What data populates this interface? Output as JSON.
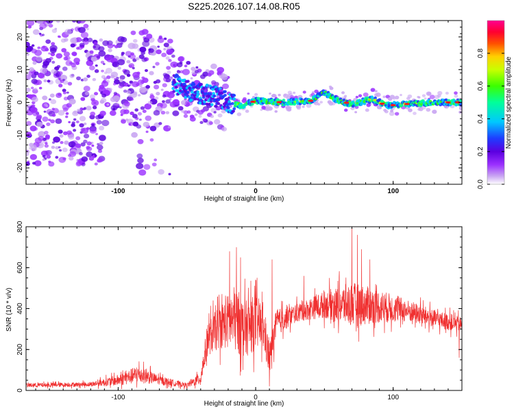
{
  "page_title": "S225.2026.107.14.08.R05",
  "chart_data": [
    {
      "type": "heatmap",
      "title": "S225.2026.107.14.08.R05",
      "xlabel": "Height of straight line (km)",
      "ylabel": "Frequency (Hz)",
      "xlim": [
        -167,
        150
      ],
      "ylim": [
        -25,
        25
      ],
      "xticks": [
        -100,
        0,
        100
      ],
      "xtick_labels": [
        "-100",
        "0",
        "100"
      ],
      "yticks": [
        -20,
        -10,
        0,
        10,
        20
      ],
      "ytick_labels": [
        "-20",
        "-10",
        "0",
        "10",
        "20"
      ],
      "colorbar": {
        "label": "Normalized spectral amplitude",
        "range": [
          0,
          1
        ],
        "ticks": [
          0.0,
          0.2,
          0.4,
          0.6,
          0.8
        ],
        "tick_labels": [
          "0.0",
          "0.2",
          "0.4",
          "0.6",
          "0.8"
        ],
        "colors": [
          "#ffffff",
          "#c9a6f2",
          "#9b30ff",
          "#5b00e0",
          "#1e3cff",
          "#00c8ff",
          "#00ff9a",
          "#3cff00",
          "#c8ff00",
          "#ffd000",
          "#ff5000",
          "#ff0030",
          "#ff0090"
        ]
      },
      "ridge": [
        {
          "x": -60,
          "y": 6
        },
        {
          "x": -45,
          "y": 3
        },
        {
          "x": -30,
          "y": 2
        },
        {
          "x": -20,
          "y": 0
        },
        {
          "x": -10,
          "y": -1
        },
        {
          "x": 0,
          "y": 0.5
        },
        {
          "x": 20,
          "y": 0
        },
        {
          "x": 40,
          "y": 0.5
        },
        {
          "x": 50,
          "y": 3
        },
        {
          "x": 60,
          "y": 0.5
        },
        {
          "x": 70,
          "y": -0.5
        },
        {
          "x": 85,
          "y": 1
        },
        {
          "x": 95,
          "y": -1
        },
        {
          "x": 110,
          "y": -0.5
        },
        {
          "x": 130,
          "y": 0
        },
        {
          "x": 150,
          "y": 0
        }
      ]
    },
    {
      "type": "line",
      "xlabel": "Height of straight line (km)",
      "ylabel": "SNR (10 * v/v)",
      "xlim": [
        -167,
        150
      ],
      "ylim": [
        0,
        800
      ],
      "xticks": [
        -100,
        0,
        100
      ],
      "xtick_labels": [
        "-100",
        "0",
        "100"
      ],
      "yticks": [
        0,
        200,
        400,
        600,
        800
      ],
      "ytick_labels": [
        "0",
        "200",
        "400",
        "600",
        "800"
      ],
      "series": [
        {
          "name": "SNR",
          "color": "#f03030",
          "envelope": [
            {
              "x": -167,
              "base": 25,
              "amp": 20
            },
            {
              "x": -120,
              "base": 30,
              "amp": 20
            },
            {
              "x": -100,
              "base": 50,
              "amp": 50
            },
            {
              "x": -85,
              "base": 80,
              "amp": 80
            },
            {
              "x": -70,
              "base": 50,
              "amp": 40
            },
            {
              "x": -50,
              "base": 25,
              "amp": 20
            },
            {
              "x": -40,
              "base": 60,
              "amp": 60
            },
            {
              "x": -35,
              "base": 250,
              "amp": 150
            },
            {
              "x": -25,
              "base": 320,
              "amp": 200
            },
            {
              "x": -15,
              "base": 350,
              "amp": 300
            },
            {
              "x": -8,
              "base": 300,
              "amp": 250
            },
            {
              "x": 0,
              "base": 330,
              "amp": 250
            },
            {
              "x": 5,
              "base": 320,
              "amp": 200
            },
            {
              "x": 10,
              "base": 150,
              "amp": 150
            },
            {
              "x": 15,
              "base": 330,
              "amp": 120
            },
            {
              "x": 30,
              "base": 380,
              "amp": 80
            },
            {
              "x": 50,
              "base": 420,
              "amp": 120
            },
            {
              "x": 70,
              "base": 420,
              "amp": 200
            },
            {
              "x": 90,
              "base": 410,
              "amp": 150
            },
            {
              "x": 110,
              "base": 390,
              "amp": 100
            },
            {
              "x": 130,
              "base": 350,
              "amp": 80
            },
            {
              "x": 150,
              "base": 320,
              "amp": 70
            }
          ],
          "spikes": [
            {
              "x": -19,
              "value": 680
            },
            {
              "x": -14,
              "value": 700
            },
            {
              "x": -11,
              "value": 650
            },
            {
              "x": 12,
              "value": 640
            },
            {
              "x": 35,
              "value": 560
            },
            {
              "x": 70,
              "value": 800
            },
            {
              "x": 74,
              "value": 760
            },
            {
              "x": 77,
              "value": 690
            },
            {
              "x": 83,
              "value": 640
            },
            {
              "x": 148,
              "value": 160
            },
            {
              "x": 10,
              "value": 20
            }
          ]
        }
      ]
    }
  ]
}
